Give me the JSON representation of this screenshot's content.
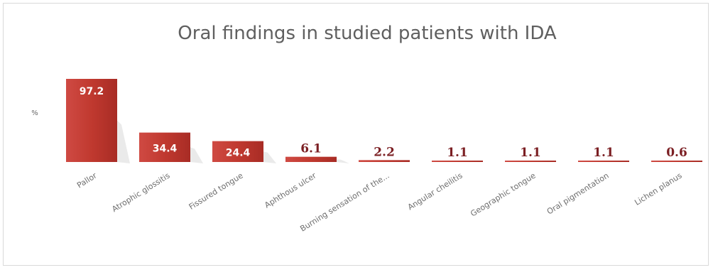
{
  "chart_data": {
    "type": "bar",
    "title": "Oral findings in studied patients with IDA",
    "ylabel": "%",
    "xlabel": "",
    "categories": [
      "Pallor",
      "Atrophic glossitis",
      "Fissured tongue",
      "Aphthous ulcer",
      "Burning sensation of the...",
      "Angular cheilitis",
      "Geographic tongue",
      "Oral pigmentation",
      "Lichen planus"
    ],
    "values": [
      97.2,
      34.4,
      24.4,
      6.1,
      2.2,
      1.1,
      1.1,
      1.1,
      0.6
    ],
    "value_labels": [
      "97.2",
      "34.4",
      "24.4",
      "6.1",
      "2.2",
      "1.1",
      "1.1",
      "1.1",
      "0.6"
    ],
    "ylim": [
      0,
      100
    ],
    "grid": false,
    "legend": "none",
    "bar_color": "#c0392f",
    "outside_label_color": "#7b1f23"
  }
}
